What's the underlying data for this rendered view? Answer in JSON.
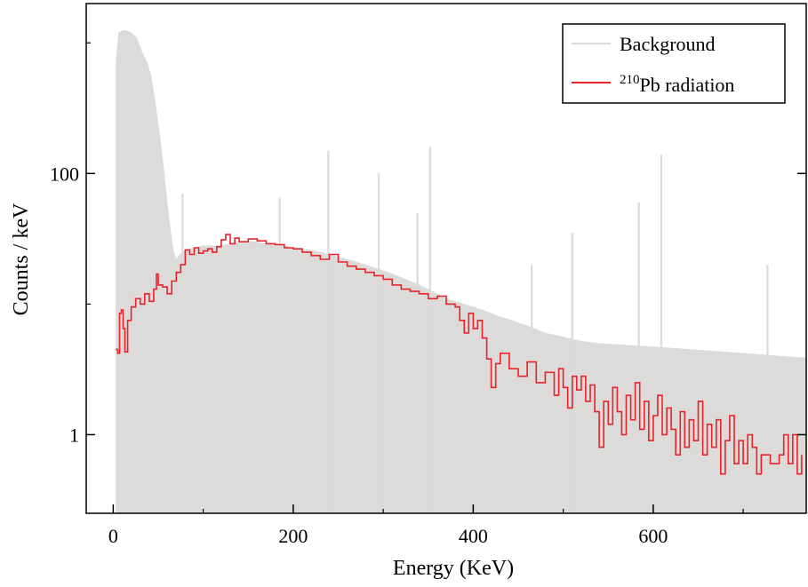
{
  "chart_data": {
    "type": "area",
    "xlabel": "Energy (KeV)",
    "ylabel": "Counts / keV",
    "x_range": [
      -30,
      770
    ],
    "ylim": [
      0.25,
      2000
    ],
    "y_scale": "log",
    "x_ticks": [
      0,
      200,
      400,
      600
    ],
    "x_tick_labels": [
      "0",
      "200",
      "400",
      "600"
    ],
    "y_ticks": [
      1,
      100
    ],
    "y_tick_labels": [
      "1",
      "100"
    ],
    "grid": false,
    "legend_position": "top-right",
    "series": [
      {
        "name": "Background",
        "color": "#dcdbd9",
        "style": "filled",
        "points": [
          [
            3,
            700
          ],
          [
            6,
            1200
          ],
          [
            12,
            1250
          ],
          [
            20,
            1200
          ],
          [
            26,
            1100
          ],
          [
            32,
            850
          ],
          [
            38,
            700
          ],
          [
            42,
            560
          ],
          [
            45,
            420
          ],
          [
            48,
            300
          ],
          [
            52,
            190
          ],
          [
            56,
            110
          ],
          [
            60,
            60
          ],
          [
            64,
            35
          ],
          [
            67,
            25
          ],
          [
            70,
            22
          ],
          [
            74,
            24
          ],
          [
            80,
            26
          ],
          [
            90,
            27
          ],
          [
            100,
            28
          ],
          [
            110,
            28
          ],
          [
            120,
            28
          ],
          [
            130,
            29
          ],
          [
            140,
            30
          ],
          [
            150,
            30
          ],
          [
            160,
            30
          ],
          [
            170,
            29
          ],
          [
            180,
            28
          ],
          [
            190,
            28
          ],
          [
            200,
            27
          ],
          [
            210,
            26
          ],
          [
            220,
            26
          ],
          [
            230,
            25
          ],
          [
            240,
            24
          ],
          [
            250,
            23
          ],
          [
            260,
            22
          ],
          [
            270,
            21
          ],
          [
            280,
            20
          ],
          [
            290,
            19
          ],
          [
            300,
            18
          ],
          [
            310,
            17
          ],
          [
            320,
            16
          ],
          [
            330,
            15
          ],
          [
            340,
            14
          ],
          [
            350,
            13
          ],
          [
            360,
            12
          ],
          [
            370,
            11
          ],
          [
            380,
            10.5
          ],
          [
            390,
            10
          ],
          [
            400,
            9.5
          ],
          [
            410,
            9
          ],
          [
            420,
            8.5
          ],
          [
            430,
            8
          ],
          [
            440,
            7.6
          ],
          [
            450,
            7.2
          ],
          [
            460,
            6.8
          ],
          [
            470,
            6.4
          ],
          [
            480,
            6
          ],
          [
            490,
            5.8
          ],
          [
            500,
            5.6
          ],
          [
            510,
            5.4
          ],
          [
            520,
            5.2
          ],
          [
            540,
            5
          ],
          [
            560,
            4.9
          ],
          [
            580,
            4.8
          ],
          [
            600,
            4.7
          ],
          [
            620,
            4.6
          ],
          [
            640,
            4.5
          ],
          [
            660,
            4.4
          ],
          [
            680,
            4.3
          ],
          [
            700,
            4.2
          ],
          [
            720,
            4.1
          ],
          [
            740,
            4
          ],
          [
            760,
            3.9
          ],
          [
            770,
            3.9
          ]
        ],
        "peaks": [
          [
            77,
            70
          ],
          [
            185,
            65
          ],
          [
            239,
            150
          ],
          [
            295,
            100
          ],
          [
            338,
            50
          ],
          [
            352,
            160
          ],
          [
            465,
            20
          ],
          [
            510,
            35
          ],
          [
            584,
            60
          ],
          [
            609,
            140
          ],
          [
            727,
            20
          ]
        ]
      },
      {
        "name": "210Pb radiation",
        "color": "#e8232a",
        "style": "line",
        "points": [
          [
            3,
            4.5
          ],
          [
            5,
            4.2
          ],
          [
            7,
            8.5
          ],
          [
            9,
            9.0
          ],
          [
            11,
            6.5
          ],
          [
            13,
            4.3
          ],
          [
            16,
            7.5
          ],
          [
            20,
            9.5
          ],
          [
            25,
            11.0
          ],
          [
            30,
            10.0
          ],
          [
            35,
            12.0
          ],
          [
            40,
            10.5
          ],
          [
            45,
            13.0
          ],
          [
            48,
            17.0
          ],
          [
            50,
            14.0
          ],
          [
            55,
            13.5
          ],
          [
            60,
            12.0
          ],
          [
            65,
            15.0
          ],
          [
            70,
            17.5
          ],
          [
            75,
            20.0
          ],
          [
            80,
            26.0
          ],
          [
            85,
            24.0
          ],
          [
            90,
            27.0
          ],
          [
            95,
            24.5
          ],
          [
            100,
            25.5
          ],
          [
            105,
            26.5
          ],
          [
            110,
            25.0
          ],
          [
            115,
            27.5
          ],
          [
            120,
            31.0
          ],
          [
            125,
            34.0
          ],
          [
            130,
            29.0
          ],
          [
            135,
            32.0
          ],
          [
            140,
            30.0
          ],
          [
            150,
            31.5
          ],
          [
            160,
            30.5
          ],
          [
            170,
            29.0
          ],
          [
            180,
            28.5
          ],
          [
            190,
            27.0
          ],
          [
            200,
            26.5
          ],
          [
            210,
            25.0
          ],
          [
            220,
            23.5
          ],
          [
            230,
            22.0
          ],
          [
            240,
            24.0
          ],
          [
            250,
            21.0
          ],
          [
            260,
            19.5
          ],
          [
            270,
            18.5
          ],
          [
            280,
            17.5
          ],
          [
            290,
            16.5
          ],
          [
            300,
            15.5
          ],
          [
            310,
            14.0
          ],
          [
            320,
            13.0
          ],
          [
            330,
            12.5
          ],
          [
            340,
            12.0
          ],
          [
            350,
            11.0
          ],
          [
            360,
            11.5
          ],
          [
            370,
            10.0
          ],
          [
            380,
            9.5
          ],
          [
            385,
            7.5
          ],
          [
            390,
            6.0
          ],
          [
            395,
            8.5
          ],
          [
            400,
            6.5
          ],
          [
            405,
            7.5
          ],
          [
            410,
            5.5
          ],
          [
            415,
            3.8
          ],
          [
            420,
            2.3
          ],
          [
            425,
            3.5
          ],
          [
            430,
            4.2
          ],
          [
            440,
            3.2
          ],
          [
            450,
            2.8
          ],
          [
            460,
            3.6
          ],
          [
            470,
            2.5
          ],
          [
            480,
            3.0
          ],
          [
            490,
            2.0
          ],
          [
            495,
            3.2
          ],
          [
            500,
            2.3
          ],
          [
            505,
            1.6
          ],
          [
            510,
            2.8
          ],
          [
            515,
            2.2
          ],
          [
            520,
            2.8
          ],
          [
            525,
            1.8
          ],
          [
            530,
            2.4
          ],
          [
            535,
            1.5
          ],
          [
            540,
            0.8
          ],
          [
            545,
            1.8
          ],
          [
            550,
            1.2
          ],
          [
            555,
            2.3
          ],
          [
            560,
            1.5
          ],
          [
            565,
            1.0
          ],
          [
            570,
            2.0
          ],
          [
            575,
            1.3
          ],
          [
            580,
            2.5
          ],
          [
            585,
            1.1
          ],
          [
            590,
            1.8
          ],
          [
            595,
            0.9
          ],
          [
            600,
            1.4
          ],
          [
            605,
            2.0
          ],
          [
            610,
            1.0
          ],
          [
            615,
            1.6
          ],
          [
            620,
            1.1
          ],
          [
            625,
            0.7
          ],
          [
            630,
            1.5
          ],
          [
            635,
            0.8
          ],
          [
            640,
            1.3
          ],
          [
            645,
            0.9
          ],
          [
            650,
            1.8
          ],
          [
            655,
            0.7
          ],
          [
            660,
            1.2
          ],
          [
            665,
            0.8
          ],
          [
            670,
            1.3
          ],
          [
            675,
            0.5
          ],
          [
            680,
            0.9
          ],
          [
            685,
            1.4
          ],
          [
            690,
            0.6
          ],
          [
            695,
            0.9
          ],
          [
            700,
            0.6
          ],
          [
            705,
            1.0
          ],
          [
            710,
            0.8
          ],
          [
            715,
            0.5
          ],
          [
            720,
            0.7
          ],
          [
            730,
            0.6
          ],
          [
            740,
            0.7
          ],
          [
            745,
            1.0
          ],
          [
            750,
            0.6
          ],
          [
            755,
            1.0
          ],
          [
            760,
            0.5
          ],
          [
            765,
            0.7
          ]
        ]
      }
    ],
    "legend": [
      {
        "label": "Background",
        "superscript": "",
        "color": "#dcdbd9"
      },
      {
        "label": "Pb radiation",
        "superscript": "210",
        "color": "#e8232a"
      }
    ]
  }
}
